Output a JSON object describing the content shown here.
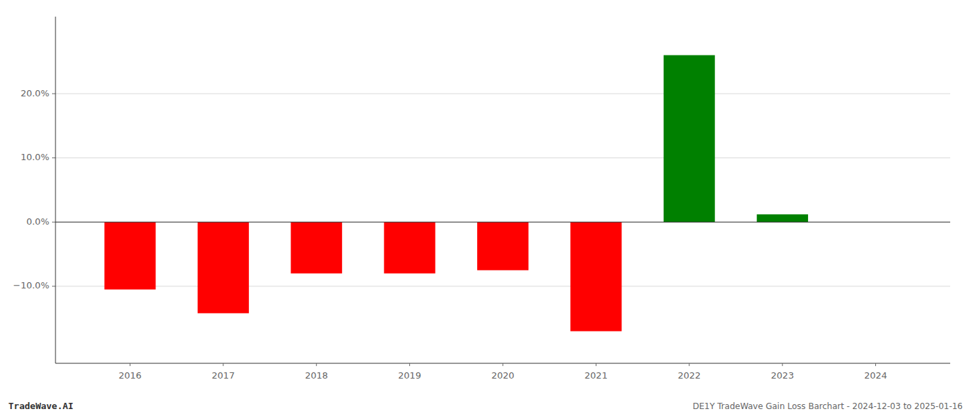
{
  "chart_data": {
    "type": "bar",
    "x": [
      2016,
      2017,
      2018,
      2019,
      2020,
      2021,
      2022,
      2023,
      2024
    ],
    "values": [
      -10.5,
      -14.2,
      -8.0,
      -8.0,
      -7.5,
      -17.0,
      26.0,
      1.2,
      0.0
    ],
    "colors": [
      "#ff0000",
      "#ff0000",
      "#ff0000",
      "#ff0000",
      "#ff0000",
      "#ff0000",
      "#008000",
      "#008000",
      "#008000"
    ],
    "xlim": [
      2015.2,
      2024.8
    ],
    "xticks": [
      2016,
      2017,
      2018,
      2019,
      2020,
      2021,
      2022,
      2023,
      2024
    ],
    "ylim": [
      -22,
      32
    ],
    "yticks": [
      {
        "value": -10.0,
        "label": "−10.0%"
      },
      {
        "value": 0.0,
        "label": "0.0%"
      },
      {
        "value": 10.0,
        "label": "10.0%"
      },
      {
        "value": 20.0,
        "label": "20.0%"
      }
    ],
    "grid": true,
    "annotations": [
      "TradeWave.AI",
      "DE1Y TradeWave Gain Loss Barchart - 2024-12-03 to 2025-01-16"
    ]
  }
}
